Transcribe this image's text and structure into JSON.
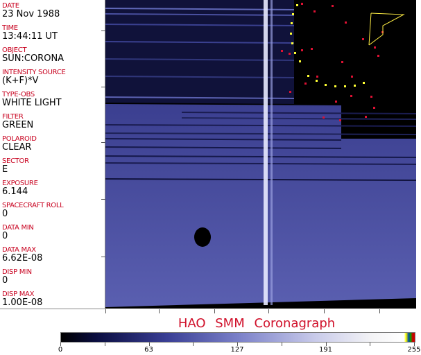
{
  "fields": [
    {
      "label": "DATE",
      "value": "23 Nov 1988"
    },
    {
      "label": "TIME",
      "value": "13:44:11 UT"
    },
    {
      "label": "OBJECT",
      "value": "SUN:CORONA"
    },
    {
      "label": "INTENSITY SOURCE",
      "value": "(K+F)*V"
    },
    {
      "label": "TYPE-OBS",
      "value": "WHITE LIGHT"
    },
    {
      "label": "FILTER",
      "value": "GREEN"
    },
    {
      "label": "POLAROID",
      "value": "CLEAR"
    },
    {
      "label": "SECTOR",
      "value": "E"
    },
    {
      "label": "EXPOSURE",
      "value": "6.144"
    },
    {
      "label": "SPACECRAFT ROLL",
      "value": "0"
    },
    {
      "label": "DATA MIN",
      "value": "0"
    },
    {
      "label": "DATA MAX",
      "value": "6.62E-08"
    },
    {
      "label": "DISP MIN",
      "value": "0"
    },
    {
      "label": "DISP MAX",
      "value": "1.00E-08"
    }
  ],
  "title": "HAO SMM Coronagraph",
  "colorbar": {
    "labels": [
      "0",
      "63",
      "127",
      "191",
      "255"
    ],
    "min": 0,
    "max": 255
  },
  "colors": {
    "label": "#c8001e",
    "marker_yellow": "#ffff33",
    "marker_red": "#dd1133",
    "overlay": "#ffee44"
  }
}
